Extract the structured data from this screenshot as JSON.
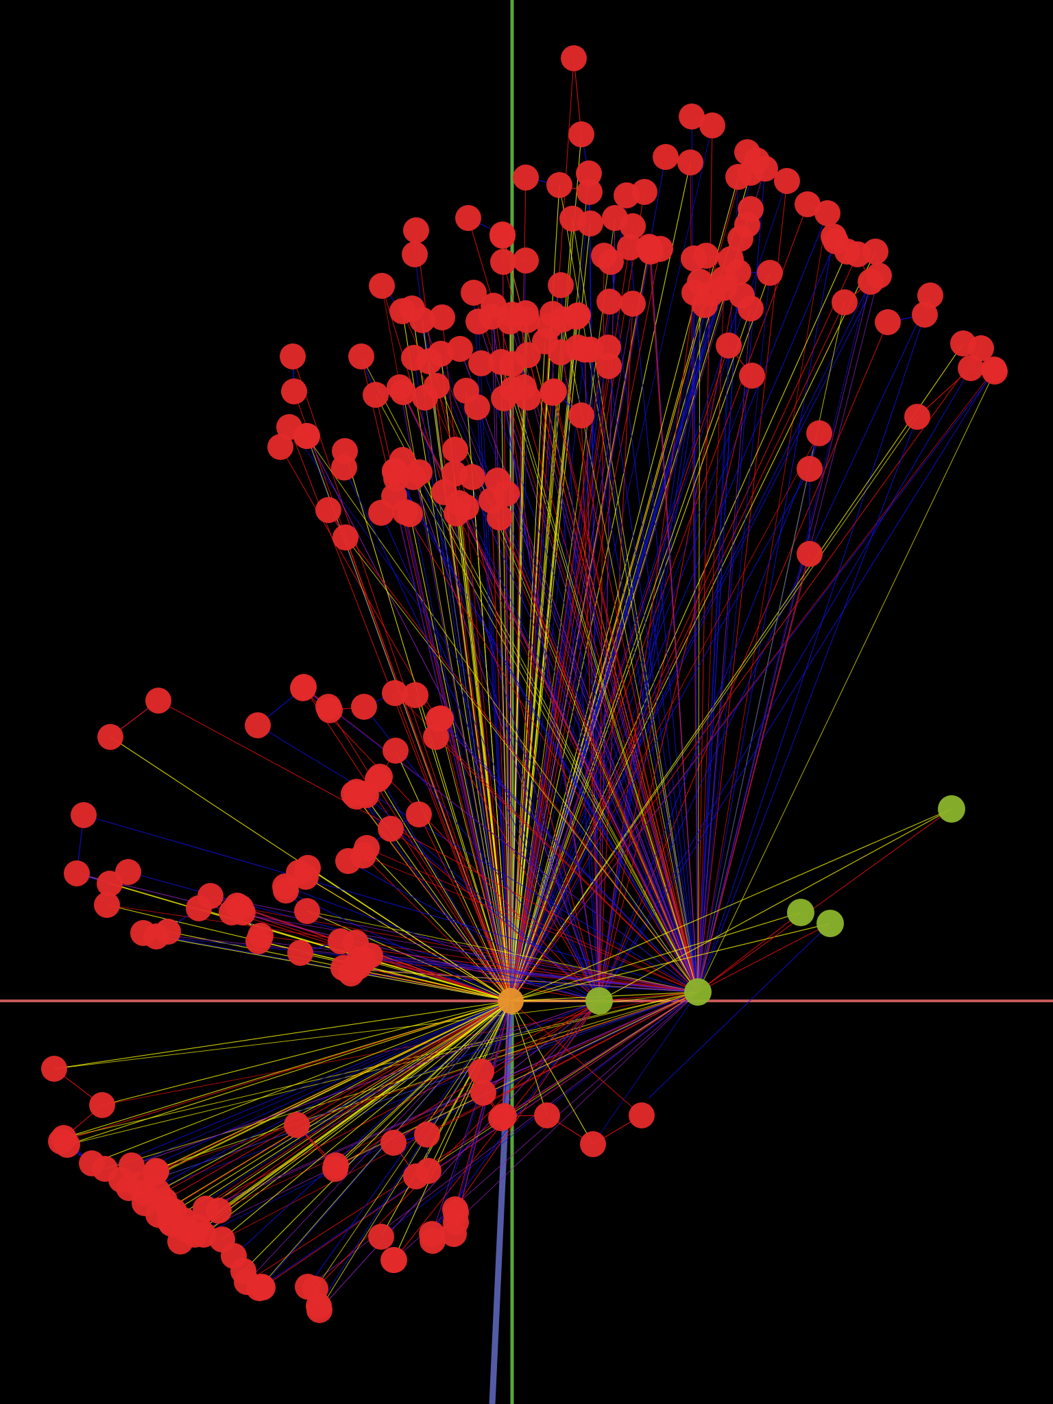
{
  "scene": {
    "background": "#000000",
    "colors": {
      "x_axis": "#c65a57",
      "y_axis": "#58a63c",
      "z_axis": "#545ba6",
      "node": "#e42a2a",
      "anchor_node": "#8cb42c",
      "hub_node": "#e8922c",
      "edge_red": "#e01010",
      "edge_blue": "#1010d8",
      "edge_yellow": "#f0f000",
      "edge_purple": "#9020c0"
    },
    "legend": []
  }
}
